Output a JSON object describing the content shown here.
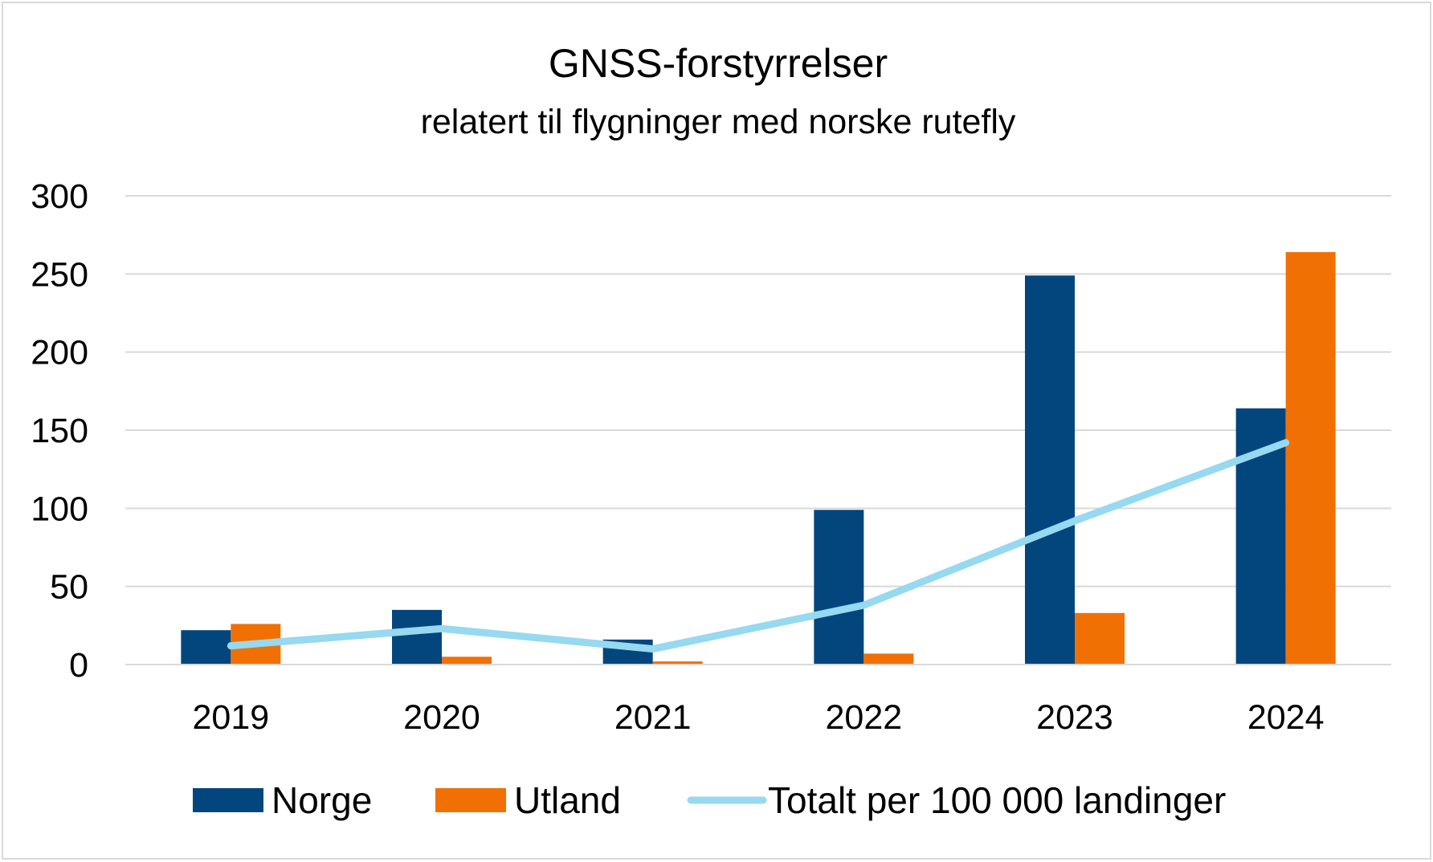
{
  "chart_data": {
    "type": "bar",
    "title": "GNSS-forstyrrelser",
    "subtitle": "relatert til flygninger med norske rutefly",
    "xlabel": "",
    "ylabel": "",
    "ylim": [
      0,
      300
    ],
    "yticks": [
      "0",
      "50",
      "100",
      "150",
      "200",
      "250",
      "300"
    ],
    "ytick_values": [
      0,
      50,
      100,
      150,
      200,
      250,
      300
    ],
    "grid": true,
    "legend_position": "bottom",
    "categories": [
      "2019",
      "2020",
      "2021",
      "2022",
      "2023",
      "2024"
    ],
    "series": [
      {
        "name": "Norge",
        "kind": "bar",
        "color": "#03467e",
        "values": [
          22,
          35,
          16,
          99,
          249,
          164
        ]
      },
      {
        "name": "Utland",
        "kind": "bar",
        "color": "#f07003",
        "values": [
          26,
          5,
          2,
          7,
          33,
          264
        ]
      },
      {
        "name": "Totalt per 100 000 landinger",
        "kind": "line",
        "color": "#96d9f0",
        "values": [
          12,
          23,
          10,
          38,
          92,
          142
        ]
      }
    ]
  }
}
